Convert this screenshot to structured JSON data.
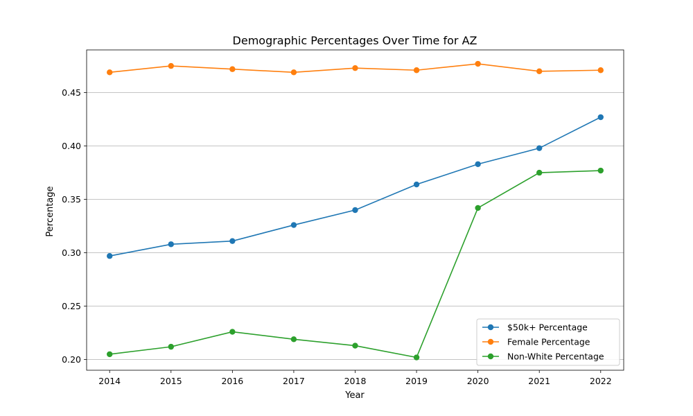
{
  "chart_data": {
    "type": "line",
    "title": "Demographic Percentages Over Time for AZ",
    "xlabel": "Year",
    "ylabel": "Percentage",
    "x": [
      2014,
      2015,
      2016,
      2017,
      2018,
      2019,
      2020,
      2021,
      2022
    ],
    "x_ticks": [
      "2014",
      "2015",
      "2016",
      "2017",
      "2018",
      "2019",
      "2020",
      "2021",
      "2022"
    ],
    "y_ticks": [
      "0.20",
      "0.25",
      "0.30",
      "0.35",
      "0.40",
      "0.45"
    ],
    "ylim": [
      0.19,
      0.49
    ],
    "grid": "horizontal",
    "legend_position": "bottom-right",
    "series": [
      {
        "name": "$50k+ Percentage",
        "color": "#1f77b4",
        "values": [
          0.297,
          0.308,
          0.311,
          0.326,
          0.34,
          0.364,
          0.383,
          0.398,
          0.427
        ]
      },
      {
        "name": "Female Percentage",
        "color": "#ff7f0e",
        "values": [
          0.469,
          0.475,
          0.472,
          0.469,
          0.473,
          0.471,
          0.477,
          0.47,
          0.471
        ]
      },
      {
        "name": "Non-White Percentage",
        "color": "#2ca02c",
        "values": [
          0.205,
          0.212,
          0.226,
          0.219,
          0.213,
          0.202,
          0.342,
          0.375,
          0.377
        ]
      }
    ]
  }
}
